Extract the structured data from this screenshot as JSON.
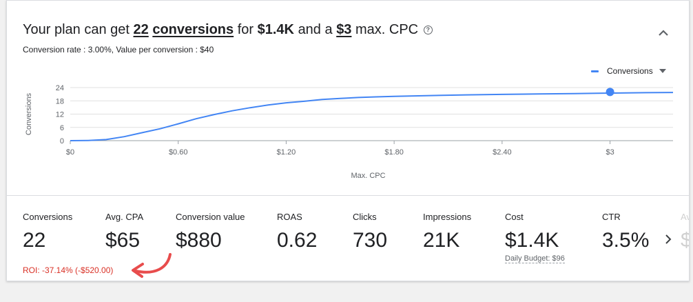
{
  "header": {
    "headline_prefix": "Your plan can get",
    "conversions_count": "22",
    "conversions_word": "conversions",
    "for_word": "for",
    "cost": "$1.4K",
    "and_a": "and a",
    "max_cpc": "$3",
    "max_cpc_suffix": "max. CPC",
    "help_icon": "help-circle-icon",
    "collapse_icon": "chevron-up-icon",
    "subtitle": "Conversion rate : 3.00%, Value per conversion : $40"
  },
  "legend": {
    "label": "Conversions",
    "color": "#4285f4",
    "caret_icon": "dropdown-caret-icon"
  },
  "chart_data": {
    "type": "line",
    "xlabel": "Max. CPC",
    "ylabel": "Conversions",
    "x_ticks": [
      "$0",
      "$0.60",
      "$1.20",
      "$1.80",
      "$2.40",
      "$3"
    ],
    "x_tick_values": [
      0,
      0.6,
      1.2,
      1.8,
      2.4,
      3.0
    ],
    "y_ticks": [
      "0",
      "6",
      "12",
      "18",
      "24"
    ],
    "y_tick_values": [
      0,
      6,
      12,
      18,
      24
    ],
    "xlim": [
      0,
      3.35
    ],
    "ylim": [
      0,
      24
    ],
    "grid": true,
    "legend_position": "top-right",
    "series": [
      {
        "name": "Conversions",
        "color": "#4285f4",
        "x": [
          0,
          0.1,
          0.2,
          0.3,
          0.4,
          0.5,
          0.6,
          0.7,
          0.8,
          0.9,
          1.0,
          1.1,
          1.2,
          1.3,
          1.4,
          1.5,
          1.6,
          1.7,
          1.8,
          2.0,
          2.2,
          2.4,
          2.6,
          2.8,
          3.0,
          3.2,
          3.35
        ],
        "values": [
          0,
          0.1,
          0.5,
          1.8,
          3.6,
          5.4,
          7.6,
          9.9,
          11.8,
          13.5,
          14.9,
          16.1,
          17.1,
          17.8,
          18.6,
          19.1,
          19.5,
          19.8,
          20.0,
          20.4,
          20.7,
          20.9,
          21.1,
          21.3,
          21.5,
          21.7,
          21.8
        ]
      }
    ],
    "highlight_point": {
      "x": 3.0,
      "y": 22
    }
  },
  "metrics": [
    {
      "label": "Conversions",
      "value": "22"
    },
    {
      "label": "Avg. CPA",
      "value": "$65"
    },
    {
      "label": "Conversion value",
      "value": "$880"
    },
    {
      "label": "ROAS",
      "value": "0.62"
    },
    {
      "label": "Clicks",
      "value": "730"
    },
    {
      "label": "Impressions",
      "value": "21K"
    },
    {
      "label": "Cost",
      "value": "$1.4K"
    },
    {
      "label": "CTR",
      "value": "3.5%"
    }
  ],
  "partial_metric": {
    "label": "Av",
    "value": "$"
  },
  "daily_budget": "Daily Budget: $96",
  "roi": "ROI: -37.14% (-$520.00)",
  "next_icon": "chevron-right-icon",
  "annotation_arrow_color": "#e84c4c"
}
